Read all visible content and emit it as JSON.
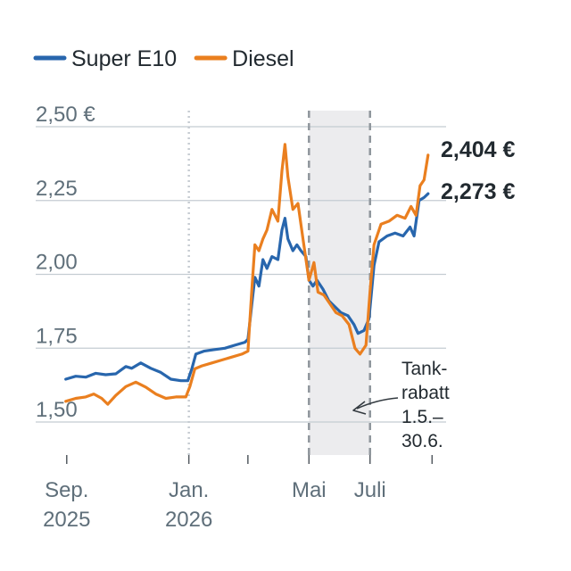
{
  "chart_data": {
    "type": "line",
    "title": "",
    "xlabel": "",
    "ylabel": "",
    "ylim": [
      1.47,
      2.5
    ],
    "y_ticks": [
      "2,50 €",
      "2,25",
      "2,00",
      "1,75",
      "1,50"
    ],
    "y_tick_values": [
      2.5,
      2.25,
      2.0,
      1.75,
      1.5
    ],
    "x_range": [
      "2025-08-01",
      "2026-09-15"
    ],
    "x_ticks": [
      {
        "date": "2025-09-01",
        "line1": "Sep.",
        "line2": "2025"
      },
      {
        "date": "2026-01-01",
        "line1": "Jan.",
        "line2": "2026"
      },
      {
        "date": "2026-03-01",
        "line1": "",
        "line2": ""
      },
      {
        "date": "2026-05-01",
        "line1": "Mai",
        "line2": ""
      },
      {
        "date": "2026-07-01",
        "line1": "Juli",
        "line2": ""
      },
      {
        "date": "2026-09-01",
        "line1": "",
        "line2": ""
      }
    ],
    "legend": {
      "position": "top-left"
    },
    "grid": true,
    "marker_lines": [
      {
        "date": "2026-01-01",
        "style": "dotted"
      },
      {
        "date": "2026-05-01",
        "style": "dashed"
      },
      {
        "date": "2026-07-01",
        "style": "dashed"
      }
    ],
    "shaded_period": {
      "start": "2026-05-01",
      "end": "2026-07-01"
    },
    "annotation": [
      "Tank-",
      "rabatt",
      "1.5.–",
      "30.6."
    ],
    "series": [
      {
        "name": "Super E10",
        "color": "#2866ad",
        "end_label": "2,273 €",
        "points": [
          [
            "2025-08-31",
            1.645
          ],
          [
            "2025-09-10",
            1.655
          ],
          [
            "2025-09-20",
            1.652
          ],
          [
            "2025-09-30",
            1.665
          ],
          [
            "2025-10-10",
            1.66
          ],
          [
            "2025-10-20",
            1.663
          ],
          [
            "2025-10-30",
            1.688
          ],
          [
            "2025-11-05",
            1.682
          ],
          [
            "2025-11-14",
            1.7
          ],
          [
            "2025-11-24",
            1.682
          ],
          [
            "2025-12-04",
            1.668
          ],
          [
            "2025-12-14",
            1.645
          ],
          [
            "2025-12-24",
            1.64
          ],
          [
            "2025-12-31",
            1.64
          ],
          [
            "2026-01-04",
            1.68
          ],
          [
            "2026-01-08",
            1.73
          ],
          [
            "2026-01-16",
            1.74
          ],
          [
            "2026-01-26",
            1.745
          ],
          [
            "2026-02-06",
            1.75
          ],
          [
            "2026-02-16",
            1.76
          ],
          [
            "2026-02-26",
            1.77
          ],
          [
            "2026-03-01",
            1.78
          ],
          [
            "2026-03-05",
            1.9
          ],
          [
            "2026-03-08",
            1.99
          ],
          [
            "2026-03-12",
            1.96
          ],
          [
            "2026-03-16",
            2.05
          ],
          [
            "2026-03-20",
            2.02
          ],
          [
            "2026-03-25",
            2.06
          ],
          [
            "2026-03-31",
            2.05
          ],
          [
            "2026-04-04",
            2.15
          ],
          [
            "2026-04-07",
            2.19
          ],
          [
            "2026-04-10",
            2.12
          ],
          [
            "2026-04-15",
            2.08
          ],
          [
            "2026-04-19",
            2.1
          ],
          [
            "2026-04-23",
            2.08
          ],
          [
            "2026-04-28",
            2.06
          ],
          [
            "2026-05-01",
            1.98
          ],
          [
            "2026-05-05",
            1.96
          ],
          [
            "2026-05-09",
            1.98
          ],
          [
            "2026-05-15",
            1.95
          ],
          [
            "2026-05-21",
            1.91
          ],
          [
            "2026-05-27",
            1.89
          ],
          [
            "2026-06-02",
            1.87
          ],
          [
            "2026-06-09",
            1.86
          ],
          [
            "2026-06-15",
            1.83
          ],
          [
            "2026-06-19",
            1.8
          ],
          [
            "2026-06-25",
            1.81
          ],
          [
            "2026-06-30",
            1.85
          ],
          [
            "2026-07-05",
            2.03
          ],
          [
            "2026-07-10",
            2.11
          ],
          [
            "2026-07-18",
            2.13
          ],
          [
            "2026-07-26",
            2.14
          ],
          [
            "2026-08-03",
            2.13
          ],
          [
            "2026-08-10",
            2.16
          ],
          [
            "2026-08-14",
            2.13
          ],
          [
            "2026-08-19",
            2.25
          ],
          [
            "2026-08-24",
            2.26
          ],
          [
            "2026-08-28",
            2.273
          ]
        ]
      },
      {
        "name": "Diesel",
        "color": "#ea7f1f",
        "end_label": "2,404 €",
        "points": [
          [
            "2025-08-31",
            1.57
          ],
          [
            "2025-09-10",
            1.58
          ],
          [
            "2025-09-20",
            1.585
          ],
          [
            "2025-09-28",
            1.595
          ],
          [
            "2025-10-06",
            1.58
          ],
          [
            "2025-10-12",
            1.56
          ],
          [
            "2025-10-20",
            1.59
          ],
          [
            "2025-10-30",
            1.62
          ],
          [
            "2025-11-09",
            1.635
          ],
          [
            "2025-11-19",
            1.618
          ],
          [
            "2025-11-29",
            1.595
          ],
          [
            "2025-12-09",
            1.58
          ],
          [
            "2025-12-19",
            1.585
          ],
          [
            "2025-12-29",
            1.585
          ],
          [
            "2026-01-02",
            1.62
          ],
          [
            "2026-01-07",
            1.68
          ],
          [
            "2026-01-14",
            1.69
          ],
          [
            "2026-01-24",
            1.7
          ],
          [
            "2026-02-03",
            1.71
          ],
          [
            "2026-02-13",
            1.72
          ],
          [
            "2026-02-23",
            1.73
          ],
          [
            "2026-03-01",
            1.74
          ],
          [
            "2026-03-05",
            1.95
          ],
          [
            "2026-03-08",
            2.1
          ],
          [
            "2026-03-12",
            2.08
          ],
          [
            "2026-03-16",
            2.12
          ],
          [
            "2026-03-20",
            2.15
          ],
          [
            "2026-03-25",
            2.22
          ],
          [
            "2026-03-31",
            2.18
          ],
          [
            "2026-04-04",
            2.35
          ],
          [
            "2026-04-07",
            2.44
          ],
          [
            "2026-04-10",
            2.33
          ],
          [
            "2026-04-15",
            2.22
          ],
          [
            "2026-04-20",
            2.24
          ],
          [
            "2026-04-25",
            2.12
          ],
          [
            "2026-05-01",
            1.98
          ],
          [
            "2026-05-06",
            2.04
          ],
          [
            "2026-05-10",
            1.94
          ],
          [
            "2026-05-16",
            1.93
          ],
          [
            "2026-05-22",
            1.9
          ],
          [
            "2026-05-28",
            1.87
          ],
          [
            "2026-06-03",
            1.86
          ],
          [
            "2026-06-10",
            1.83
          ],
          [
            "2026-06-16",
            1.75
          ],
          [
            "2026-06-21",
            1.73
          ],
          [
            "2026-06-27",
            1.76
          ],
          [
            "2026-07-01",
            1.94
          ],
          [
            "2026-07-05",
            2.1
          ],
          [
            "2026-07-12",
            2.17
          ],
          [
            "2026-07-20",
            2.18
          ],
          [
            "2026-07-28",
            2.2
          ],
          [
            "2026-08-05",
            2.19
          ],
          [
            "2026-08-11",
            2.23
          ],
          [
            "2026-08-16",
            2.2
          ],
          [
            "2026-08-20",
            2.3
          ],
          [
            "2026-08-24",
            2.32
          ],
          [
            "2026-08-28",
            2.404
          ]
        ]
      }
    ]
  }
}
